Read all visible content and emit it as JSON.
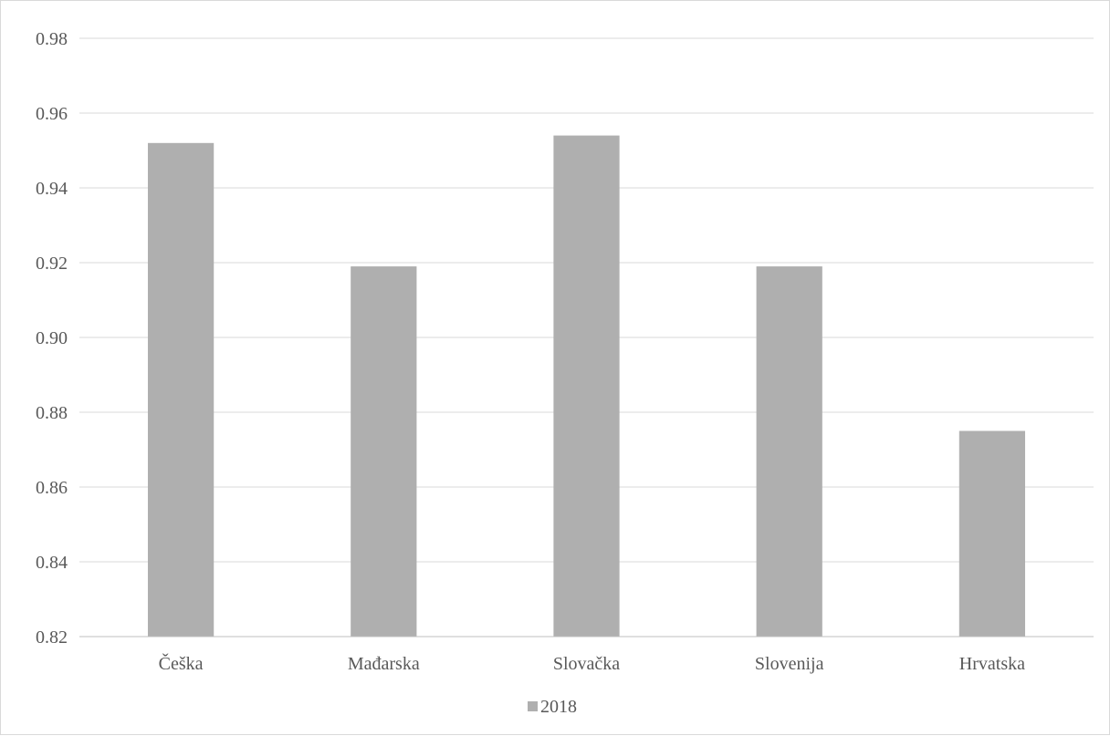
{
  "chart_data": {
    "type": "bar",
    "title": "",
    "xlabel": "",
    "ylabel": "",
    "categories": [
      "Češka",
      "Mađarska",
      "Slovačka",
      "Slovenija",
      "Hrvatska"
    ],
    "series": [
      {
        "name": "2018",
        "values": [
          0.952,
          0.919,
          0.954,
          0.919,
          0.875
        ],
        "color": "#afafaf"
      }
    ],
    "ylim": [
      0.82,
      0.98
    ],
    "yticks": [
      "0.82",
      "0.84",
      "0.86",
      "0.88",
      "0.90",
      "0.92",
      "0.94",
      "0.96",
      "0.98"
    ],
    "grid": true,
    "legend_position": "bottom-center",
    "colors": {
      "bar": "#afafaf",
      "grid": "#d9d9d9",
      "axis": "#bfbfbf",
      "text": "#595959"
    }
  }
}
